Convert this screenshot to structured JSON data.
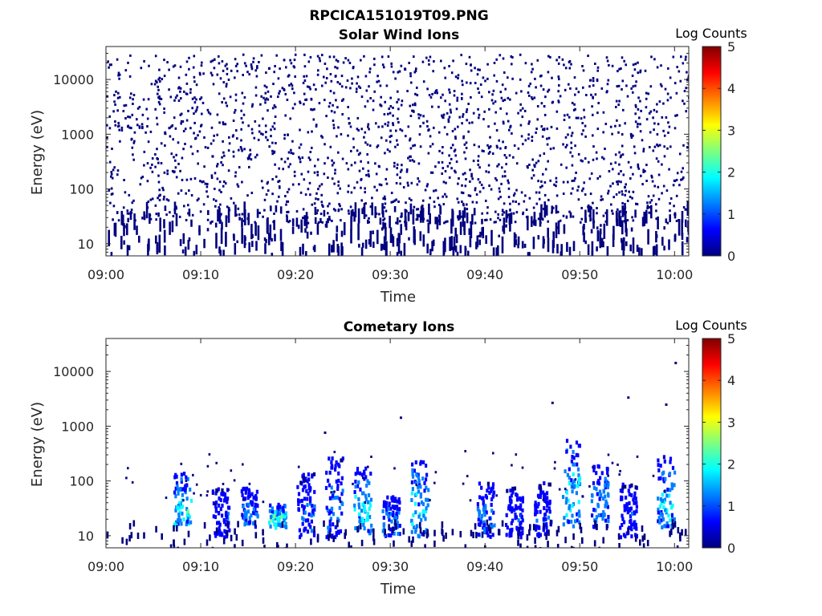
{
  "figure": {
    "title": "RPCICA151019T09.PNG",
    "colormap": [
      "#00007f",
      "#0000ff",
      "#007fff",
      "#00ffff",
      "#7fff7f",
      "#ffff00",
      "#ff7f00",
      "#ff0000",
      "#7f0000"
    ]
  },
  "chart_data": [
    {
      "type": "heatmap",
      "title": "Solar Wind Ions",
      "xlabel": "Time",
      "ylabel": "Energy (eV)",
      "x_ticks": [
        "09:00",
        "09:10",
        "09:20",
        "09:30",
        "09:40",
        "09:50",
        "10:00"
      ],
      "y_ticks": [
        "10",
        "100",
        "1000",
        "10000"
      ],
      "y_scale": "log",
      "ylim": [
        6,
        40000
      ],
      "colorbar": {
        "title": "Log Counts",
        "ticks": [
          "0",
          "1",
          "2",
          "3",
          "4",
          "5"
        ],
        "range": [
          0,
          5
        ]
      },
      "description_values": {
        "dominant_level": 0,
        "sparse_high_energy_counts": "scattered single counts from ~30 eV to ~30000 eV across the whole hour",
        "low_energy_band_eV": [
          6,
          40
        ]
      }
    },
    {
      "type": "heatmap",
      "title": "Cometary Ions",
      "xlabel": "Time",
      "ylabel": "Energy (eV)",
      "x_ticks": [
        "09:00",
        "09:10",
        "09:20",
        "09:30",
        "09:40",
        "09:50",
        "10:00"
      ],
      "y_ticks": [
        "10",
        "100",
        "1000",
        "10000"
      ],
      "y_scale": "log",
      "ylim": [
        6,
        40000
      ],
      "colorbar": {
        "title": "Log Counts",
        "ticks": [
          "0",
          "1",
          "2",
          "3",
          "4",
          "5"
        ],
        "range": [
          0,
          5
        ]
      },
      "bursts": [
        {
          "time": "09:08",
          "emin": 15,
          "emax": 150,
          "peak": 2.2
        },
        {
          "time": "09:12",
          "emin": 10,
          "emax": 80,
          "peak": 1.0
        },
        {
          "time": "09:15",
          "emin": 15,
          "emax": 80,
          "peak": 1.4
        },
        {
          "time": "09:18",
          "emin": 15,
          "emax": 40,
          "peak": 2.4
        },
        {
          "time": "09:21",
          "emin": 10,
          "emax": 150,
          "peak": 1.2
        },
        {
          "time": "09:24",
          "emin": 10,
          "emax": 300,
          "peak": 1.3
        },
        {
          "time": "09:27",
          "emin": 12,
          "emax": 200,
          "peak": 2.0
        },
        {
          "time": "09:30",
          "emin": 10,
          "emax": 60,
          "peak": 1.4
        },
        {
          "time": "09:33",
          "emin": 10,
          "emax": 250,
          "peak": 1.9
        },
        {
          "time": "09:40",
          "emin": 10,
          "emax": 100,
          "peak": 1.4
        },
        {
          "time": "09:43",
          "emin": 10,
          "emax": 80,
          "peak": 1.0
        },
        {
          "time": "09:46",
          "emin": 10,
          "emax": 100,
          "peak": 1.0
        },
        {
          "time": "09:49",
          "emin": 15,
          "emax": 600,
          "peak": 2.0
        },
        {
          "time": "09:52",
          "emin": 15,
          "emax": 250,
          "peak": 1.5
        },
        {
          "time": "09:55",
          "emin": 10,
          "emax": 100,
          "peak": 1.0
        },
        {
          "time": "09:59",
          "emin": 15,
          "emax": 300,
          "peak": 2.0
        }
      ],
      "isolated_points": [
        {
          "time": "09:47",
          "energy": 2800
        },
        {
          "time": "09:55",
          "energy": 3500
        },
        {
          "time": "09:59",
          "energy": 2600
        },
        {
          "time": "10:00",
          "energy": 15000
        },
        {
          "time": "09:31",
          "energy": 1500
        },
        {
          "time": "09:23",
          "energy": 800
        }
      ]
    }
  ]
}
